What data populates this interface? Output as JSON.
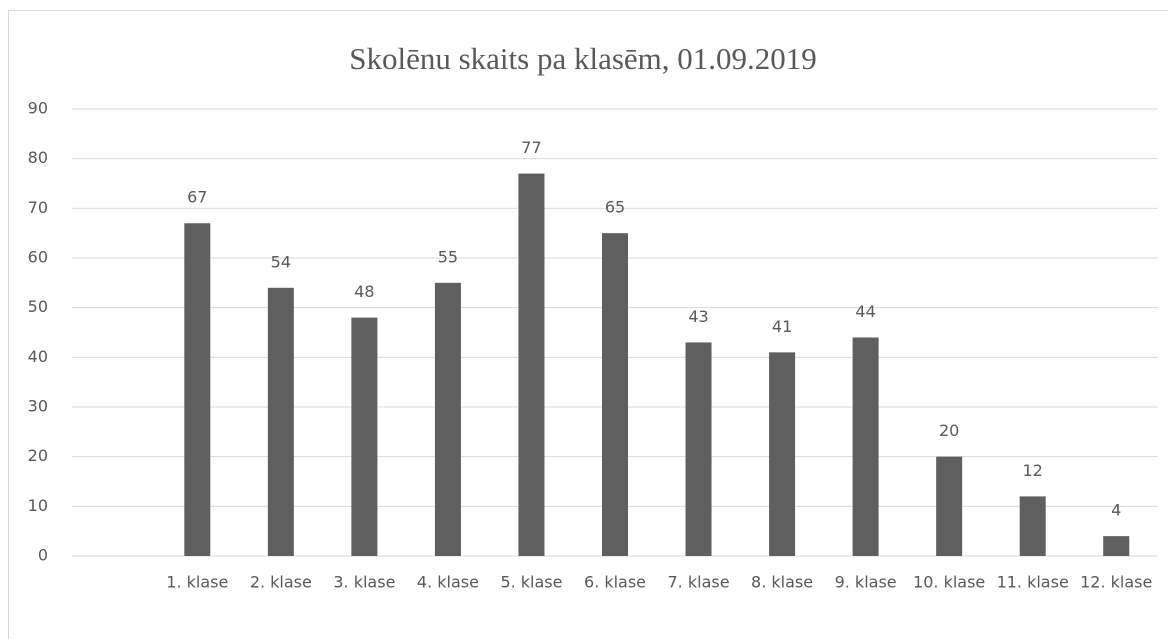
{
  "chart_data": {
    "type": "bar",
    "title": "Skolēnu skaits pa klasēm, 01.09.2019",
    "categories": [
      null,
      "1. klase",
      "2. klase",
      "3. klase",
      "4. klase",
      "5. klase",
      "6. klase",
      "7. klase",
      "8. klase",
      "9. klase",
      "10. klase",
      "11. klase",
      "12. klase"
    ],
    "values": [
      null,
      67,
      54,
      48,
      55,
      77,
      65,
      43,
      41,
      44,
      20,
      12,
      4
    ],
    "color": "#5f5f5f",
    "ylim": [
      0,
      90
    ],
    "yticks": [
      0,
      10,
      20,
      30,
      40,
      50,
      60,
      70,
      80,
      90
    ],
    "grid": true,
    "data_labels": true
  }
}
